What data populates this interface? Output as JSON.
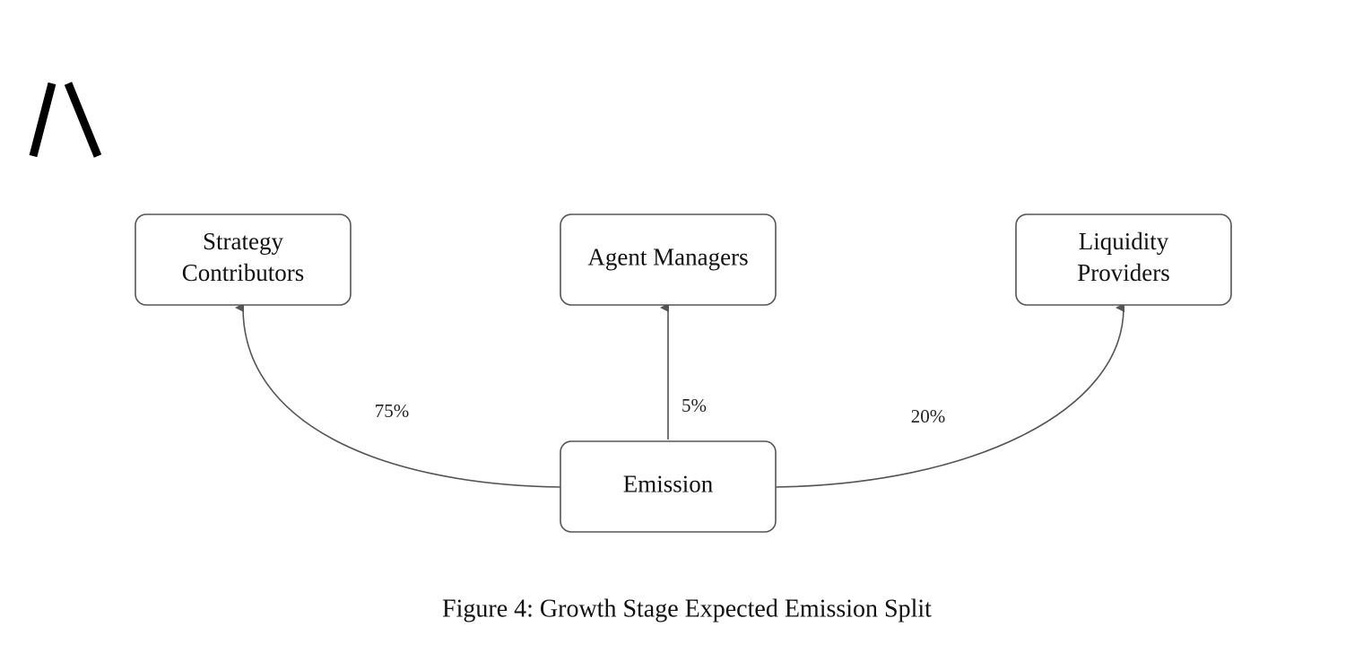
{
  "nodes": [
    {
      "label": [
        "Strategy",
        "Contributors"
      ]
    },
    {
      "label": [
        "Agent Managers"
      ]
    },
    {
      "label": [
        "Liquidity",
        "Providers"
      ]
    },
    {
      "label": [
        "Emission"
      ]
    }
  ],
  "edges": [
    {
      "label": "75%"
    },
    {
      "label": "5%"
    },
    {
      "label": "20%"
    }
  ],
  "caption": "Figure 4: Growth Stage Expected Emission Split"
}
